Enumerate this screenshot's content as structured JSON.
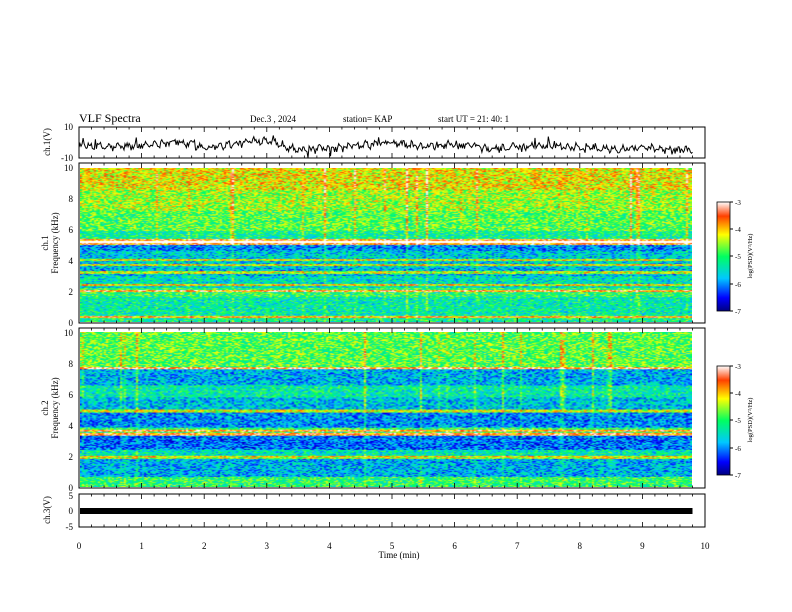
{
  "header": {
    "title": "VLF Spectra",
    "date": "Dec.3 , 2024",
    "station": "station= KAP",
    "start": "start UT = 21: 40: 1"
  },
  "chart_data": [
    {
      "id": "ch1-voltage",
      "type": "line",
      "ylabel": "ch.1(V)",
      "ylim": [
        -10,
        10
      ],
      "ytick_labels": [
        "-10",
        "10"
      ],
      "xlim": [
        0,
        10
      ],
      "description_values_x_min": [
        0,
        0.5,
        1,
        1.5,
        2,
        2.5,
        3,
        3.5,
        4,
        4.5,
        5,
        5.5,
        6,
        6.5,
        7,
        7.5,
        8,
        8.5,
        9,
        9.5,
        9.8
      ],
      "y_envelope_V": [
        -2,
        -3,
        -2,
        1,
        -3,
        -1,
        2,
        -5,
        -4,
        -2,
        0,
        -3,
        -1,
        -4,
        -3,
        -2,
        -3,
        -4,
        -3,
        -5,
        -4
      ]
    },
    {
      "id": "ch1-spectrogram",
      "type": "heatmap",
      "ylabel": "ch.1\nFrequency (kHz)",
      "ylabel_line1": "ch.1",
      "ylabel_line2": "Frequency (kHz)",
      "ylim": [
        0,
        10
      ],
      "ytick_labels": [
        "0",
        "2",
        "4",
        "6",
        "8",
        "10"
      ],
      "colorbar": {
        "label": "log(PSD)(V²/Hz)",
        "range": [
          -7,
          -3
        ],
        "tick_labels": [
          "-3",
          "-4",
          "-5",
          "-6",
          "-7"
        ]
      },
      "bands_kHz": [
        {
          "lo": 0.0,
          "hi": 0.4,
          "level": 0.45
        },
        {
          "lo": 0.4,
          "hi": 1.6,
          "level": 0.42
        },
        {
          "lo": 1.6,
          "hi": 2.2,
          "level": 0.5
        },
        {
          "lo": 2.2,
          "hi": 3.0,
          "level": 0.38
        },
        {
          "lo": 3.0,
          "hi": 3.5,
          "level": 0.3
        },
        {
          "lo": 3.5,
          "hi": 4.6,
          "level": 0.34
        },
        {
          "lo": 4.6,
          "hi": 5.0,
          "level": 0.25
        },
        {
          "lo": 5.0,
          "hi": 5.4,
          "level": 0.85
        },
        {
          "lo": 5.4,
          "hi": 5.9,
          "level": 0.45
        },
        {
          "lo": 5.9,
          "hi": 7.2,
          "level": 0.55
        },
        {
          "lo": 7.2,
          "hi": 8.6,
          "level": 0.62
        },
        {
          "lo": 8.6,
          "hi": 10.0,
          "level": 0.7
        }
      ],
      "strong_lines_kHz": [
        0.3,
        2.0,
        2.4,
        3.2,
        3.7,
        4.0,
        5.2
      ]
    },
    {
      "id": "ch2-spectrogram",
      "type": "heatmap",
      "ylabel": "ch.2\nFrequency (kHz)",
      "ylabel_line1": "ch.2",
      "ylabel_line2": "Frequency (kHz)",
      "ylim": [
        0,
        10
      ],
      "ytick_labels": [
        "0",
        "2",
        "4",
        "6",
        "8",
        "10"
      ],
      "colorbar": {
        "label": "log(PSD)(V²/Hz)",
        "range": [
          -7,
          -3
        ],
        "tick_labels": [
          "-3",
          "-4",
          "-5",
          "-6",
          "-7"
        ]
      },
      "bands_kHz": [
        {
          "lo": 0.0,
          "hi": 0.6,
          "level": 0.5
        },
        {
          "lo": 0.6,
          "hi": 1.9,
          "level": 0.3
        },
        {
          "lo": 1.9,
          "hi": 2.4,
          "level": 0.4
        },
        {
          "lo": 2.4,
          "hi": 3.3,
          "level": 0.22
        },
        {
          "lo": 3.3,
          "hi": 3.8,
          "level": 0.5
        },
        {
          "lo": 3.8,
          "hi": 4.8,
          "level": 0.26
        },
        {
          "lo": 4.8,
          "hi": 5.8,
          "level": 0.32
        },
        {
          "lo": 5.8,
          "hi": 6.6,
          "level": 0.42
        },
        {
          "lo": 6.6,
          "hi": 7.6,
          "level": 0.3
        },
        {
          "lo": 7.6,
          "hi": 10.0,
          "level": 0.55
        }
      ],
      "strong_lines_kHz": [
        1.9,
        3.4,
        3.6,
        4.9,
        7.7
      ]
    },
    {
      "id": "ch3-voltage",
      "type": "line",
      "ylabel": "ch.3(V)",
      "ylim": [
        -5,
        5
      ],
      "ytick_labels": [
        "-5",
        "0",
        "5"
      ],
      "xlabel": "Time (min)",
      "xlim": [
        0,
        10
      ],
      "xtick_labels": [
        "0",
        "1",
        "2",
        "3",
        "4",
        "5",
        "6",
        "7",
        "8",
        "9",
        "10"
      ],
      "data_end_min": 9.8,
      "constant_value_V": 0
    }
  ]
}
